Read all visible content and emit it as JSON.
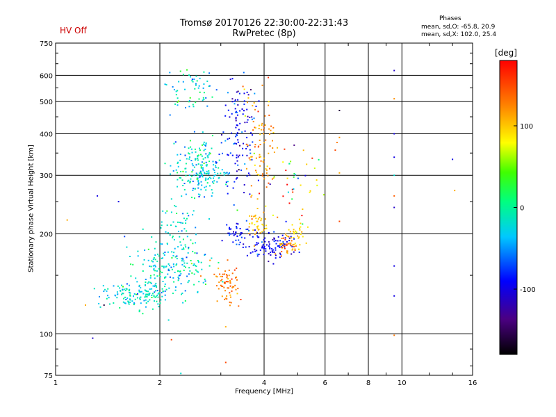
{
  "status": {
    "hv_label": "HV Off",
    "hv_color": "#cc0000"
  },
  "phases": {
    "title": "Phases",
    "line1": "mean, sd,O: -65.8, 20.9",
    "line2": "mean, sd,X: 102.0, 25.4"
  },
  "chart_data": {
    "type": "scatter",
    "title": "Tromsø 20170126 22:30:00-22:31:43",
    "subtitle": "RwPretec (8p)",
    "xlabel": "Frequency [MHz]",
    "ylabel": "Stationary phase Virtual Height [km]",
    "x_scale": "log",
    "y_scale": "log",
    "xlim": [
      1,
      16
    ],
    "ylim": [
      75,
      750
    ],
    "x_ticks": [
      1,
      2,
      4,
      6,
      8,
      10,
      16
    ],
    "y_ticks": [
      75,
      100,
      200,
      300,
      400,
      500,
      600,
      750
    ],
    "grid": true,
    "colorbar": {
      "title": "[deg]",
      "range": [
        -180,
        180
      ],
      "ticks": [
        100,
        0,
        -100
      ]
    },
    "point_groups": [
      {
        "cx": 1.75,
        "cy": 130,
        "sx": 0.12,
        "sy": 0.05,
        "n": 150,
        "color_deg": -20,
        "jitter": 20
      },
      {
        "cx": 2.15,
        "cy": 160,
        "sx": 0.12,
        "sy": 0.1,
        "n": 180,
        "color_deg": -20,
        "jitter": 25
      },
      {
        "cx": 2.6,
        "cy": 310,
        "sx": 0.08,
        "sy": 0.1,
        "n": 200,
        "color_deg": -25,
        "jitter": 25
      },
      {
        "cx": 2.5,
        "cy": 540,
        "sx": 0.09,
        "sy": 0.08,
        "n": 60,
        "color_deg": -20,
        "jitter": 30
      },
      {
        "cx": 3.4,
        "cy": 400,
        "sx": 0.06,
        "sy": 0.22,
        "n": 120,
        "color_deg": -90,
        "jitter": 20
      },
      {
        "cx": 3.9,
        "cy": 360,
        "sx": 0.05,
        "sy": 0.2,
        "n": 90,
        "color_deg": 120,
        "jitter": 20
      },
      {
        "cx": 3.1,
        "cy": 140,
        "sx": 0.05,
        "sy": 0.07,
        "n": 70,
        "color_deg": 130,
        "jitter": 15
      },
      {
        "cx": 4.2,
        "cy": 185,
        "sx": 0.08,
        "sy": 0.05,
        "n": 100,
        "color_deg": -95,
        "jitter": 15
      },
      {
        "cx": 4.6,
        "cy": 185,
        "sx": 0.04,
        "sy": 0.03,
        "n": 30,
        "color_deg": 135,
        "jitter": 15
      },
      {
        "cx": 4.9,
        "cy": 200,
        "sx": 0.04,
        "sy": 0.05,
        "n": 40,
        "color_deg": 95,
        "jitter": 10
      },
      {
        "cx": 3.8,
        "cy": 215,
        "sx": 0.04,
        "sy": 0.05,
        "n": 40,
        "color_deg": 100,
        "jitter": 10
      },
      {
        "cx": 3.3,
        "cy": 200,
        "sx": 0.05,
        "sy": 0.04,
        "n": 40,
        "color_deg": -85,
        "jitter": 20
      },
      {
        "cx": 4.8,
        "cy": 280,
        "sx": 0.12,
        "sy": 0.15,
        "n": 40,
        "color_deg": 40,
        "jitter": 80
      },
      {
        "cx": 2.3,
        "cy": 220,
        "sx": 0.06,
        "sy": 0.12,
        "n": 50,
        "color_deg": -20,
        "jitter": 20
      }
    ],
    "scattered_points": [
      {
        "x": 1.08,
        "y": 220,
        "deg": 110
      },
      {
        "x": 1.22,
        "y": 122,
        "deg": 110
      },
      {
        "x": 1.28,
        "y": 97,
        "deg": -110
      },
      {
        "x": 1.32,
        "y": 260,
        "deg": -100
      },
      {
        "x": 1.38,
        "y": 122,
        "deg": -160
      },
      {
        "x": 1.52,
        "y": 250,
        "deg": -100
      },
      {
        "x": 2.12,
        "y": 110,
        "deg": -20
      },
      {
        "x": 2.16,
        "y": 96,
        "deg": 150
      },
      {
        "x": 2.3,
        "y": 76,
        "deg": -20
      },
      {
        "x": 3.1,
        "y": 82,
        "deg": 150
      },
      {
        "x": 3.1,
        "y": 105,
        "deg": 110
      },
      {
        "x": 6.6,
        "y": 470,
        "deg": -160
      },
      {
        "x": 6.6,
        "y": 390,
        "deg": 120
      },
      {
        "x": 6.6,
        "y": 305,
        "deg": 110
      },
      {
        "x": 6.6,
        "y": 218,
        "deg": 150
      },
      {
        "x": 9.5,
        "y": 620,
        "deg": -110
      },
      {
        "x": 9.5,
        "y": 510,
        "deg": 120
      },
      {
        "x": 9.5,
        "y": 400,
        "deg": -100
      },
      {
        "x": 9.5,
        "y": 340,
        "deg": -100
      },
      {
        "x": 9.5,
        "y": 300,
        "deg": -20
      },
      {
        "x": 9.5,
        "y": 260,
        "deg": 140
      },
      {
        "x": 9.5,
        "y": 240,
        "deg": -110
      },
      {
        "x": 9.5,
        "y": 160,
        "deg": -100
      },
      {
        "x": 9.5,
        "y": 130,
        "deg": -100
      },
      {
        "x": 9.5,
        "y": 99,
        "deg": 130
      },
      {
        "x": 14.0,
        "y": 335,
        "deg": -100
      },
      {
        "x": 14.2,
        "y": 270,
        "deg": 110
      },
      {
        "x": 5.6,
        "y": 315,
        "deg": 70
      },
      {
        "x": 5.1,
        "y": 280,
        "deg": 90
      }
    ]
  }
}
